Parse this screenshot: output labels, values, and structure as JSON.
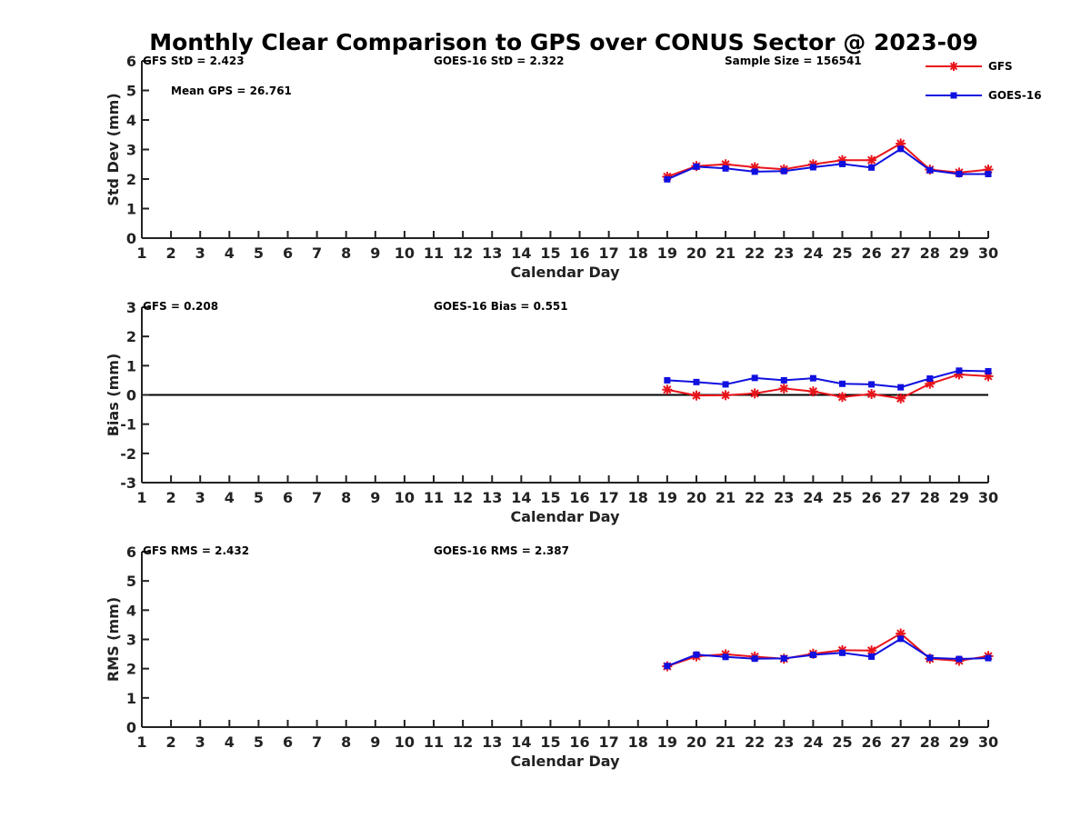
{
  "title": "Monthly Clear Comparison to GPS over CONUS Sector @ 2023-09",
  "colors": {
    "gfs": "#e8141b",
    "goes": "#1010e0",
    "axis": "#222222",
    "zero_line": "#000000"
  },
  "legend": {
    "placement": "top-right",
    "items": [
      "GFS",
      "GOES-16"
    ]
  },
  "chart_data": [
    {
      "type": "line",
      "ylabel": "Std Dev (mm)",
      "xlabel": "Calendar Day",
      "xlim": [
        1,
        30
      ],
      "ylim": [
        0,
        6
      ],
      "yticks": [
        "0",
        "1",
        "2",
        "3",
        "4",
        "5",
        "6"
      ],
      "xticks": [
        "1",
        "2",
        "3",
        "4",
        "5",
        "6",
        "7",
        "8",
        "9",
        "10",
        "11",
        "12",
        "13",
        "14",
        "15",
        "16",
        "17",
        "18",
        "19",
        "20",
        "21",
        "22",
        "23",
        "24",
        "25",
        "26",
        "27",
        "28",
        "29",
        "30"
      ],
      "annotations": [
        "GFS StD = 2.423",
        "GOES-16 StD = 2.322",
        "Sample Size = 156541",
        "Mean GPS = 26.761"
      ],
      "x": [
        19,
        20,
        21,
        22,
        23,
        24,
        25,
        26,
        27,
        28,
        29,
        30
      ],
      "series": [
        {
          "name": "GFS",
          "marker": "star",
          "values": [
            2.08,
            2.44,
            2.5,
            2.4,
            2.33,
            2.5,
            2.64,
            2.64,
            3.2,
            2.32,
            2.22,
            2.32
          ]
        },
        {
          "name": "GOES-16",
          "marker": "square",
          "values": [
            1.99,
            2.42,
            2.36,
            2.25,
            2.27,
            2.4,
            2.51,
            2.39,
            3.02,
            2.3,
            2.17,
            2.17
          ]
        }
      ]
    },
    {
      "type": "line",
      "ylabel": "Bias (mm)",
      "xlabel": "Calendar Day",
      "xlim": [
        1,
        30
      ],
      "ylim": [
        -3,
        3
      ],
      "zero_line": true,
      "yticks": [
        "-3",
        "-2",
        "-1",
        "0",
        "1",
        "2",
        "3"
      ],
      "xticks": [
        "1",
        "2",
        "3",
        "4",
        "5",
        "6",
        "7",
        "8",
        "9",
        "10",
        "11",
        "12",
        "13",
        "14",
        "15",
        "16",
        "17",
        "18",
        "19",
        "20",
        "21",
        "22",
        "23",
        "24",
        "25",
        "26",
        "27",
        "28",
        "29",
        "30"
      ],
      "annotations": [
        "GFS = 0.208",
        "GOES-16 Bias = 0.551"
      ],
      "x": [
        19,
        20,
        21,
        22,
        23,
        24,
        25,
        26,
        27,
        28,
        29,
        30
      ],
      "series": [
        {
          "name": "GFS",
          "marker": "star",
          "values": [
            0.18,
            -0.02,
            -0.01,
            0.05,
            0.22,
            0.12,
            -0.07,
            0.03,
            -0.12,
            0.38,
            0.7,
            0.64
          ]
        },
        {
          "name": "GOES-16",
          "marker": "square",
          "values": [
            0.5,
            0.44,
            0.36,
            0.58,
            0.5,
            0.57,
            0.38,
            0.36,
            0.26,
            0.56,
            0.83,
            0.81
          ]
        }
      ]
    },
    {
      "type": "line",
      "ylabel": "RMS (mm)",
      "xlabel": "Calendar Day",
      "xlim": [
        1,
        30
      ],
      "ylim": [
        0,
        6
      ],
      "yticks": [
        "0",
        "1",
        "2",
        "3",
        "4",
        "5",
        "6"
      ],
      "xticks": [
        "1",
        "2",
        "3",
        "4",
        "5",
        "6",
        "7",
        "8",
        "9",
        "10",
        "11",
        "12",
        "13",
        "14",
        "15",
        "16",
        "17",
        "18",
        "19",
        "20",
        "21",
        "22",
        "23",
        "24",
        "25",
        "26",
        "27",
        "28",
        "29",
        "30"
      ],
      "annotations": [
        "GFS RMS = 2.432",
        "GOES-16 RMS = 2.387"
      ],
      "x": [
        19,
        20,
        21,
        22,
        23,
        24,
        25,
        26,
        27,
        28,
        29,
        30
      ],
      "series": [
        {
          "name": "GFS",
          "marker": "star",
          "values": [
            2.08,
            2.42,
            2.49,
            2.41,
            2.34,
            2.51,
            2.63,
            2.62,
            3.2,
            2.34,
            2.27,
            2.43
          ]
        },
        {
          "name": "GOES-16",
          "marker": "square",
          "values": [
            2.09,
            2.48,
            2.4,
            2.34,
            2.35,
            2.47,
            2.54,
            2.41,
            3.02,
            2.37,
            2.33,
            2.36
          ]
        }
      ]
    }
  ]
}
